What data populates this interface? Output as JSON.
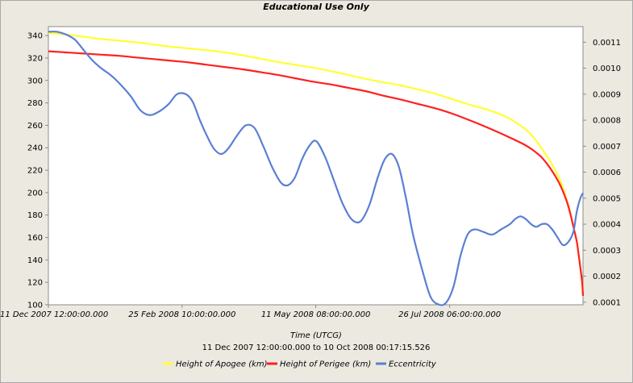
{
  "chart_data": {
    "type": "line",
    "title": "Educational Use Only",
    "xlabel": "Time (UTCG)",
    "x_range_text": "11 Dec 2007 12:00:00.000  to  10 Oct 2008 00:17:15.526",
    "x_ticks": [
      {
        "day": 0,
        "label": "11 Dec 2007 12:00:00.000"
      },
      {
        "day": 75.9,
        "label": "25 Feb 2008 10:00:00.000"
      },
      {
        "day": 151.8,
        "label": "11 May 2008 08:00:00.000"
      },
      {
        "day": 227.8,
        "label": "26 Jul 2008 06:00:00.000"
      }
    ],
    "x_range_days": [
      0,
      303.5
    ],
    "y_left": {
      "ylim": [
        100,
        348
      ],
      "ticks": [
        100,
        120,
        140,
        160,
        180,
        200,
        220,
        240,
        260,
        280,
        300,
        320,
        340
      ]
    },
    "y_right": {
      "ylim": [
        9e-05,
        0.00116
      ],
      "ticks": [
        "0.0001",
        "0.0002",
        "0.0003",
        "0.0004",
        "0.0005",
        "0.0006",
        "0.0007",
        "0.0008",
        "0.0009",
        "0.0010",
        "0.0011"
      ]
    },
    "series": [
      {
        "name": "Height of Apogee (km)",
        "color": "#ffff33",
        "axis": "left",
        "x": [
          0,
          10,
          20,
          30,
          40,
          50,
          60,
          70,
          80,
          90,
          100,
          110,
          120,
          130,
          140,
          150,
          160,
          170,
          180,
          190,
          200,
          210,
          220,
          230,
          240,
          250,
          260,
          270,
          275,
          280,
          285,
          290,
          294,
          296,
          298,
          300,
          301,
          302,
          303,
          303.5
        ],
        "values": [
          342,
          341,
          339,
          337,
          335.5,
          334,
          332,
          330,
          328.5,
          327,
          325,
          322.5,
          319.5,
          316.5,
          314,
          311.5,
          308.5,
          305,
          301.5,
          298.5,
          295.5,
          292,
          288,
          283,
          278,
          273.5,
          267.5,
          257.5,
          250,
          239.5,
          227.5,
          213,
          195,
          184,
          170,
          156,
          145,
          133,
          120,
          109
        ]
      },
      {
        "name": "Height of Perigee (km)",
        "color": "#ff2020",
        "axis": "left",
        "x": [
          0,
          10,
          20,
          30,
          40,
          50,
          60,
          70,
          80,
          90,
          100,
          110,
          120,
          130,
          140,
          150,
          160,
          170,
          180,
          190,
          200,
          210,
          220,
          230,
          240,
          250,
          260,
          270,
          275,
          280,
          285,
          290,
          294,
          296,
          298,
          300,
          301,
          302,
          303,
          303.5
        ],
        "values": [
          326,
          325,
          324,
          323,
          322,
          320.5,
          319,
          317.5,
          316,
          314,
          312,
          310,
          307.5,
          305,
          302,
          299,
          296.5,
          293.5,
          290.5,
          286.5,
          283,
          279,
          275,
          270,
          264,
          257.5,
          250.5,
          243,
          238,
          231.5,
          221.5,
          208.5,
          193.5,
          183,
          170,
          156,
          145,
          133,
          120,
          108
        ]
      },
      {
        "name": "Eccentricity",
        "color": "#5b7fd4",
        "axis": "right",
        "x": [
          0,
          5,
          10,
          15,
          20,
          25,
          30,
          36,
          42,
          47,
          52,
          57,
          62,
          68,
          73,
          78,
          82,
          86,
          90,
          94,
          98,
          102,
          107,
          112,
          117,
          122,
          127,
          132,
          136,
          140,
          144,
          148,
          152,
          157,
          162,
          167,
          172,
          177,
          182,
          187,
          191,
          195,
          199,
          203,
          207,
          212,
          217,
          222,
          226,
          230,
          234,
          238,
          242,
          247,
          252,
          257,
          262,
          265,
          268,
          271,
          274,
          277,
          280,
          283,
          286,
          289,
          292,
          295,
          298,
          300,
          302,
          303.5
        ],
        "values": [
          0.00114,
          0.00114,
          0.00113,
          0.00111,
          0.00107,
          0.00103,
          0.001,
          0.00097,
          0.00093,
          0.00089,
          0.00084,
          0.00082,
          0.00083,
          0.00086,
          0.0009,
          0.0009,
          0.00087,
          0.0008,
          0.00074,
          0.00069,
          0.00067,
          0.00069,
          0.00074,
          0.00078,
          0.00077,
          0.0007,
          0.00062,
          0.00056,
          0.00055,
          0.00058,
          0.00065,
          0.0007,
          0.00072,
          0.00066,
          0.00057,
          0.00048,
          0.00042,
          0.00041,
          0.00047,
          0.00058,
          0.00065,
          0.00067,
          0.00062,
          0.0005,
          0.00036,
          0.00023,
          0.00012,
          9e-05,
          0.0001,
          0.00016,
          0.00028,
          0.00036,
          0.00038,
          0.00037,
          0.00036,
          0.00038,
          0.0004,
          0.00042,
          0.00043,
          0.00042,
          0.0004,
          0.00039,
          0.0004,
          0.0004,
          0.00038,
          0.00035,
          0.00032,
          0.00033,
          0.00037,
          0.00045,
          0.0005,
          0.00052
        ]
      }
    ],
    "grid": false,
    "legend": "bottom"
  }
}
